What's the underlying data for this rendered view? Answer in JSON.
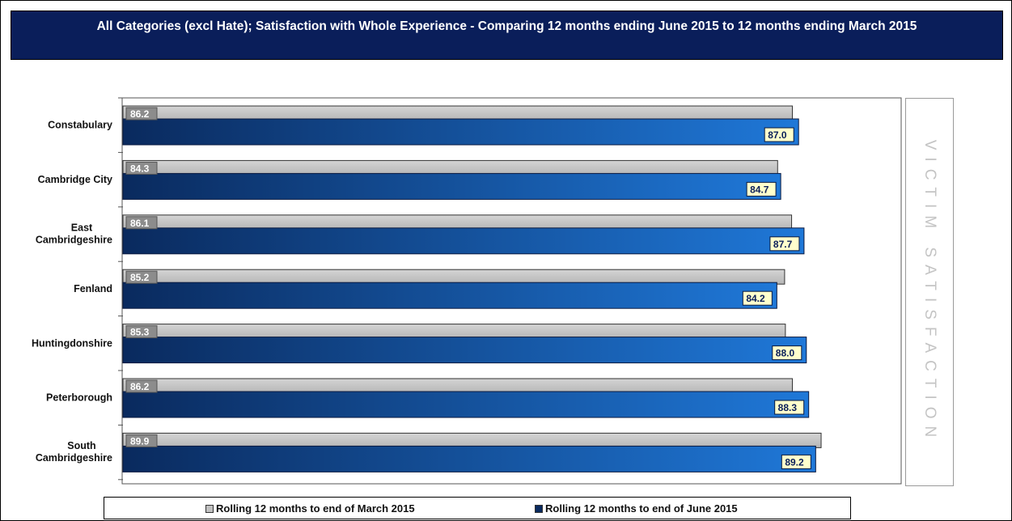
{
  "title": "All Categories (excl Hate); Satisfaction with Whole Experience - Comparing 12 months ending June 2015 to 12 months ending March 2015",
  "side_label": "VICTIM SATISFACTION",
  "colors": {
    "march": "#c0c0c0",
    "june_dark": "#0a2a5e",
    "june_light": "#1f78d8",
    "title_bg": "#0a1e5a"
  },
  "chart_data": {
    "type": "bar",
    "orientation": "horizontal",
    "title": "All Categories (excl Hate); Satisfaction with Whole Experience - Comparing 12 months ending June 2015 to 12 months ending March 2015",
    "categories": [
      "Constabulary",
      "Cambridge City",
      "East Cambridgeshire",
      "Fenland",
      "Huntingdonshire",
      "Peterborough",
      "South Cambridgeshire"
    ],
    "series": [
      {
        "name": "Rolling 12 months to end of March 2015",
        "values": [
          86.2,
          84.3,
          86.1,
          85.2,
          85.3,
          86.2,
          89.9
        ]
      },
      {
        "name": "Rolling 12 months to end of June 2015",
        "values": [
          87.0,
          84.7,
          87.7,
          84.2,
          88.0,
          88.3,
          89.2
        ]
      }
    ],
    "value_labels": {
      "march": [
        "86.2",
        "84.3",
        "86.1",
        "85.2",
        "85.3",
        "86.2",
        "89.9"
      ],
      "june": [
        "87.0",
        "84.7",
        "87.7",
        "84.2",
        "88.0",
        "88.3",
        "89.2"
      ]
    },
    "xlim": [
      0,
      100
    ],
    "legend": "bottom",
    "grid": false
  }
}
